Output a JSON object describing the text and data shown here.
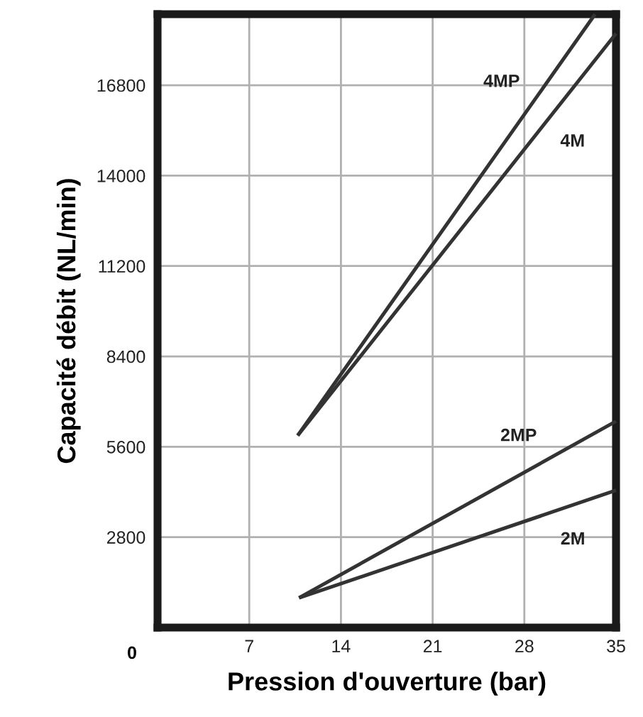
{
  "chart_data": {
    "type": "line",
    "xlabel": "Pression d'ouverture (bar)",
    "ylabel": "Capacité débit (NL/min)",
    "xlim": [
      0,
      35
    ],
    "xticks": [
      7,
      14,
      21,
      28,
      35
    ],
    "ylim": [
      0,
      19000
    ],
    "yticks": [
      2800,
      5600,
      8400,
      11200,
      14000,
      16800
    ],
    "grid": true,
    "annotations": [
      "0"
    ],
    "series": [
      {
        "name": "4MP",
        "color": "#333333",
        "x": [
          10.7,
          33.4
        ],
        "values": [
          5950,
          19000
        ]
      },
      {
        "name": "4M",
        "color": "#333333",
        "x": [
          10.7,
          35
        ],
        "values": [
          5950,
          18400
        ]
      },
      {
        "name": "2MP",
        "color": "#333333",
        "x": [
          10.8,
          35
        ],
        "values": [
          920,
          6390
        ]
      },
      {
        "name": "2M",
        "color": "#333333",
        "x": [
          10.8,
          35
        ],
        "values": [
          920,
          4250
        ]
      }
    ]
  }
}
